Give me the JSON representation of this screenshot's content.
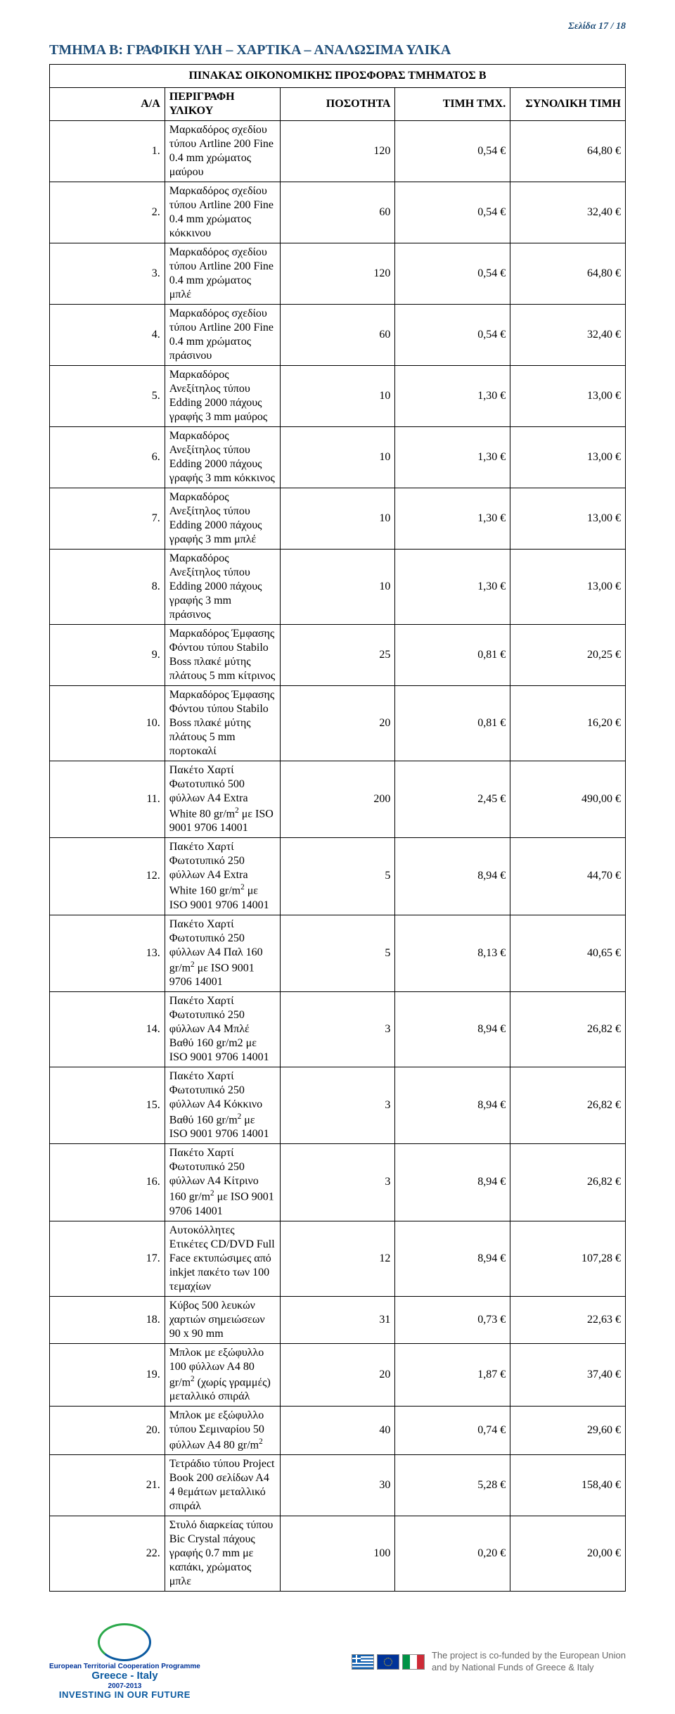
{
  "page_label": "Σελίδα 17 / 18",
  "section_title": "ΤΜΗΜΑ Β: ΓΡΑΦΙΚΗ ΥΛΗ  –  ΧΑΡΤΙΚΑ  –  ΑΝΑΛΩΣΙΜΑ ΥΛΙΚΑ",
  "table_caption": "ΠΙΝΑΚΑΣ ΟΙΚΟΝΟΜΙΚΗΣ ΠΡΟΣΦΟΡΑΣ ΤΜΗΜΑΤΟΣ Β",
  "headers": {
    "aa": "Α/Α",
    "desc": "ΠΕΡΙΓΡΑΦΗ ΥΛΙΚΟΥ",
    "qty": "ΠΟΣΟΤΗΤΑ",
    "unit": "ΤΙΜΗ ΤΜΧ.",
    "total": "ΣΥΝΟΛΙΚΗ ΤΙΜΗ"
  },
  "rows": [
    {
      "aa": "1.",
      "desc": "Μαρκαδόρος σχεδίου τύπου Artline 200 Fine 0.4 mm χρώματος μαύρου",
      "qty": "120",
      "unit": "0,54 €",
      "tot": "64,80 €"
    },
    {
      "aa": "2.",
      "desc": "Μαρκαδόρος σχεδίου τύπου Artline 200 Fine 0.4 mm χρώματος κόκκινου",
      "qty": "60",
      "unit": "0,54 €",
      "tot": "32,40 €"
    },
    {
      "aa": "3.",
      "desc": "Μαρκαδόρος σχεδίου τύπου Artline 200 Fine 0.4 mm χρώματος μπλέ",
      "qty": "120",
      "unit": "0,54 €",
      "tot": "64,80 €"
    },
    {
      "aa": "4.",
      "desc": "Μαρκαδόρος σχεδίου τύπου Artline 200 Fine 0.4 mm χρώματος πράσινου",
      "qty": "60",
      "unit": "0,54 €",
      "tot": "32,40 €"
    },
    {
      "aa": "5.",
      "desc": "Μαρκαδόρος Ανεξίτηλος τύπου Edding 2000 πάχους γραφής 3 mm μαύρος",
      "qty": "10",
      "unit": "1,30 €",
      "tot": "13,00 €"
    },
    {
      "aa": "6.",
      "desc": "Μαρκαδόρος Ανεξίτηλος τύπου Edding 2000 πάχους γραφής 3 mm κόκκινος",
      "qty": "10",
      "unit": "1,30 €",
      "tot": "13,00 €"
    },
    {
      "aa": "7.",
      "desc": "Μαρκαδόρος Ανεξίτηλος τύπου Edding 2000 πάχους γραφής 3 mm μπλέ",
      "qty": "10",
      "unit": "1,30 €",
      "tot": "13,00 €"
    },
    {
      "aa": "8.",
      "desc": "Μαρκαδόρος Ανεξίτηλος τύπου Edding 2000 πάχους γραφής 3 mm πράσινος",
      "qty": "10",
      "unit": "1,30 €",
      "tot": "13,00 €"
    },
    {
      "aa": "9.",
      "desc": "Μαρκαδόρος Έμφασης Φόντου τύπου Stabilo Boss πλακέ μύτης πλάτους  5  mm κίτρινος",
      "qty": "25",
      "unit": "0,81 €",
      "tot": "20,25 €"
    },
    {
      "aa": "10.",
      "desc": "Μαρκαδόρος Έμφασης Φόντου τύπου Stabilo Boss πλακέ μύτης πλάτους  5  mm πορτοκαλί",
      "qty": "20",
      "unit": "0,81 €",
      "tot": "16,20 €"
    },
    {
      "aa": "11.",
      "desc": "Πακέτο Χαρτί Φωτοτυπικό 500 φύλλων Α4 Extra  White  80  gr/m²   με  ISO  9001 9706 14001",
      "qty": "200",
      "unit": "2,45 €",
      "tot": "490,00 €"
    },
    {
      "aa": "12.",
      "desc": "Πακέτο Χαρτί Φωτοτυπικό 250 φύλλων Α4  Extra White  160  gr/m²   με  ISO  9001 9706 14001",
      "qty": "5",
      "unit": "8,94 €",
      "tot": "44,70 €"
    },
    {
      "aa": "13.",
      "desc": "Πακέτο Χαρτί Φωτοτυπικό 250 φύλλων Α4  Παλ 160  gr/m²   με  ISO  9001 9706 14001",
      "qty": "5",
      "unit": "8,13 €",
      "tot": "40,65 €"
    },
    {
      "aa": "14.",
      "desc": "Πακέτο Χαρτί Φωτοτυπικό 250  φύλλων   Α4 Μπλέ  Βαθύ  160  gr/m2   με  ISO  9001 9706 14001",
      "qty": "3",
      "unit": "8,94 €",
      "tot": "26,82 €"
    },
    {
      "aa": "15.",
      "desc": "Πακέτο Χαρτί Φωτοτυπικό 250  φύλλων  Α4 Κόκκινο  Βαθύ  160  gr/m²   με  ISO  9001 9706 14001",
      "qty": "3",
      "unit": "8,94 €",
      "tot": "26,82 €"
    },
    {
      "aa": "16.",
      "desc": "Πακέτο Χαρτί Φωτοτυπικό 250  φύλλων  Α4 Κίτρινο  160  gr/m²   με  ISO  9001 9706 14001",
      "qty": "3",
      "unit": "8,94 €",
      "tot": "26,82 €"
    },
    {
      "aa": "17.",
      "desc": "Αυτοκόλλητες Ετικέτες CD/DVD   Full   Face εκτυπώσιμες  από  inkjet  πακέτο των 100 τεμαχίων",
      "qty": "12",
      "unit": "8,94 €",
      "tot": "107,28 €"
    },
    {
      "aa": "18.",
      "desc": "Κύβος 500  λευκών χαρτιών σημειώσεων  90  x  90  mm",
      "qty": "31",
      "unit": "0,73 €",
      "tot": "22,63 €"
    },
    {
      "aa": "19.",
      "desc": "Μπλοκ με εξώφυλλο  100  φύλλων  Α4  80  gr/m² (χωρίς  γραμμές)  μεταλλικό   σπιράλ",
      "qty": "20",
      "unit": "1,87 €",
      "tot": "37,40 €"
    },
    {
      "aa": "20.",
      "desc": "Μπλοκ με εξώφυλλο τύπου Σεμιναρίου 50 φύλλων Α4  80  gr/m²",
      "qty": "40",
      "unit": "0,74 €",
      "tot": "29,60 €"
    },
    {
      "aa": "21.",
      "desc": "Τετράδιο τύπου Project Book 200 σελίδων Α4  4 θεμάτων μεταλλικό σπιράλ",
      "qty": "30",
      "unit": "5,28 €",
      "tot": "158,40 €"
    },
    {
      "aa": "22.",
      "desc": "Στυλό διαρκείας τύπου Bic Crystal πάχους γραφής 0.7 mm με καπάκι, χρώματος μπλε",
      "qty": "100",
      "unit": "0,20 €",
      "tot": "20,00 €"
    }
  ],
  "footer": {
    "etcp": {
      "line1": "European Territorial Cooperation Programme",
      "line2": "Greece - Italy",
      "line3": "2007-2013",
      "line4": "INVESTING IN OUR FUTURE"
    },
    "cofund": {
      "line1": "The project is co-funded by the European Union",
      "line2": "and by National Funds of Greece & Italy"
    }
  },
  "colors": {
    "title": "#1f4e79",
    "text": "#000000",
    "border": "#000000",
    "footer_text": "#666666"
  }
}
